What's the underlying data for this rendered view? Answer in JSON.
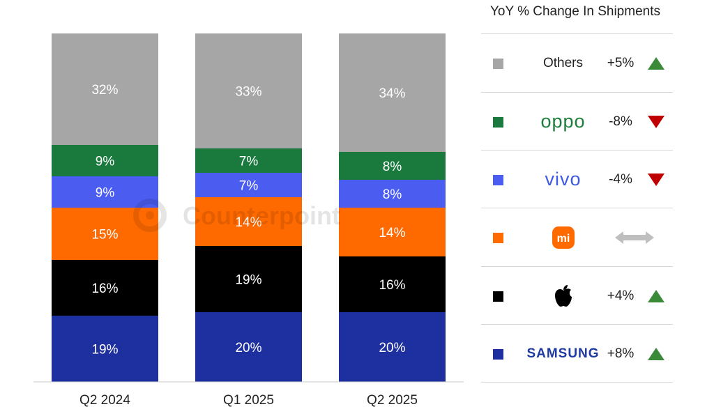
{
  "chart_data": {
    "type": "bar",
    "stacked": true,
    "percent": true,
    "categories": [
      "Q2 2024",
      "Q1 2025",
      "Q2 2025"
    ],
    "series": [
      {
        "name": "Samsung",
        "color": "#1e2f9f",
        "values": [
          19,
          20,
          20
        ],
        "labels": [
          "19%",
          "20%",
          "20%"
        ]
      },
      {
        "name": "Apple",
        "color": "#000000",
        "values": [
          16,
          19,
          16
        ],
        "labels": [
          "16%",
          "19%",
          "16%"
        ]
      },
      {
        "name": "Xiaomi",
        "color": "#ff6a00",
        "values": [
          15,
          14,
          14
        ],
        "labels": [
          "15%",
          "14%",
          "14%"
        ]
      },
      {
        "name": "vivo",
        "color": "#4a5df0",
        "values": [
          9,
          7,
          8
        ],
        "labels": [
          "9%",
          "7%",
          "8%"
        ]
      },
      {
        "name": "OPPO",
        "color": "#1a7a3e",
        "values": [
          9,
          7,
          8
        ],
        "labels": [
          "9%",
          "7%",
          "8%"
        ]
      },
      {
        "name": "Others",
        "color": "#a6a6a6",
        "values": [
          32,
          33,
          34
        ],
        "labels": [
          "32%",
          "33%",
          "34%"
        ]
      }
    ],
    "ylim": [
      0,
      100
    ],
    "watermark": "Counterpoint"
  },
  "legend": {
    "title": "YoY % Change In Shipments",
    "items": [
      {
        "brand": "Others",
        "color": "#a6a6a6",
        "change": "+5%",
        "trend": "up"
      },
      {
        "brand": "oppo",
        "color": "#1a7a3e",
        "change": "-8%",
        "trend": "down"
      },
      {
        "brand": "vivo",
        "color": "#4a5df0",
        "change": "-4%",
        "trend": "down"
      },
      {
        "brand": "mi",
        "color": "#ff6a00",
        "change": "",
        "trend": "flat"
      },
      {
        "brand": "apple-logo-icon",
        "color": "#000000",
        "change": "+4%",
        "trend": "up"
      },
      {
        "brand": "SAMSUNG",
        "color": "#1e2f9f",
        "change": "+8%",
        "trend": "up"
      }
    ],
    "up_color": "#3a8a3a",
    "down_color": "#c00000",
    "flat_color": "#bfbfbf"
  }
}
